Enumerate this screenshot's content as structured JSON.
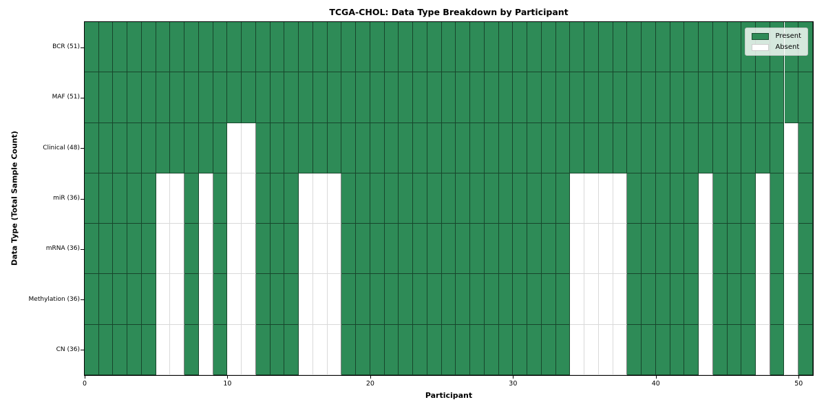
{
  "chart_data": {
    "type": "heatmap",
    "title": "TCGA-CHOL: Data Type Breakdown by Participant",
    "xlabel": "Participant",
    "ylabel": "Data Type (Total Sample Count)",
    "x_ticks": [
      0,
      10,
      20,
      30,
      40,
      50
    ],
    "x_range": [
      0,
      51
    ],
    "participants": {
      "count": 51,
      "index_range": [
        0,
        50
      ]
    },
    "grid": true,
    "legend_position": "upper right",
    "legend": [
      {
        "label": "Present",
        "color": "#2e8b57"
      },
      {
        "label": "Absent",
        "color": "#ffffff"
      }
    ],
    "colors": {
      "present": "#2e8b57",
      "absent": "#ffffff",
      "edge_on_present": "rgba(0,0,0,0.5)",
      "edge_on_absent": "rgba(0,0,0,0.15)"
    },
    "rows": [
      {
        "label": "BCR (51)",
        "data_type": "BCR",
        "present_count": 51,
        "absent_participants": []
      },
      {
        "label": "MAF (51)",
        "data_type": "MAF",
        "present_count": 51,
        "absent_participants": []
      },
      {
        "label": "Clinical (48)",
        "data_type": "Clinical",
        "present_count": 48,
        "absent_participants": [
          10,
          11,
          49
        ]
      },
      {
        "label": "miR (36)",
        "data_type": "miR",
        "present_count": 36,
        "absent_participants": [
          5,
          6,
          8,
          10,
          11,
          15,
          16,
          17,
          34,
          35,
          36,
          37,
          43,
          47,
          49
        ]
      },
      {
        "label": "mRNA (36)",
        "data_type": "mRNA",
        "present_count": 36,
        "absent_participants": [
          5,
          6,
          8,
          10,
          11,
          15,
          16,
          17,
          34,
          35,
          36,
          37,
          43,
          47,
          49
        ]
      },
      {
        "label": "Methylation (36)",
        "data_type": "Methylation",
        "present_count": 36,
        "absent_participants": [
          5,
          6,
          8,
          10,
          11,
          15,
          16,
          17,
          34,
          35,
          36,
          37,
          43,
          47,
          49
        ]
      },
      {
        "label": "CN (36)",
        "data_type": "CN",
        "present_count": 36,
        "absent_participants": [
          5,
          6,
          8,
          10,
          11,
          15,
          16,
          17,
          34,
          35,
          36,
          37,
          43,
          47,
          49
        ]
      }
    ]
  }
}
